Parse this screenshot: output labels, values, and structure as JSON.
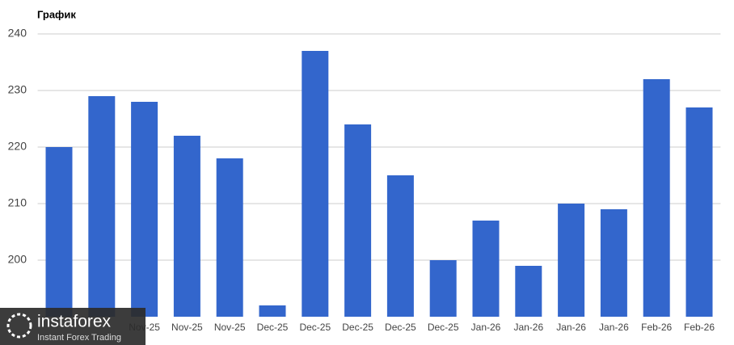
{
  "chart_data": {
    "type": "bar",
    "title": "График",
    "categories": [
      null,
      null,
      "Nov-25",
      "Nov-25",
      "Nov-25",
      "Dec-25",
      "Dec-25",
      "Dec-25",
      "Dec-25",
      "Dec-25",
      "Jan-26",
      "Jan-26",
      "Jan-26",
      "Jan-26",
      "Feb-26",
      "Feb-26"
    ],
    "values": [
      220,
      229,
      228,
      222,
      218,
      192,
      237,
      224,
      215,
      200,
      207,
      199,
      210,
      209,
      232,
      227
    ],
    "color": "#3366cc",
    "ylim": [
      190,
      240
    ],
    "yticks": [
      200,
      210,
      220,
      230,
      240
    ],
    "grid": true
  },
  "watermark": {
    "brand": "instaforex",
    "tagline": "Instant Forex Trading"
  }
}
